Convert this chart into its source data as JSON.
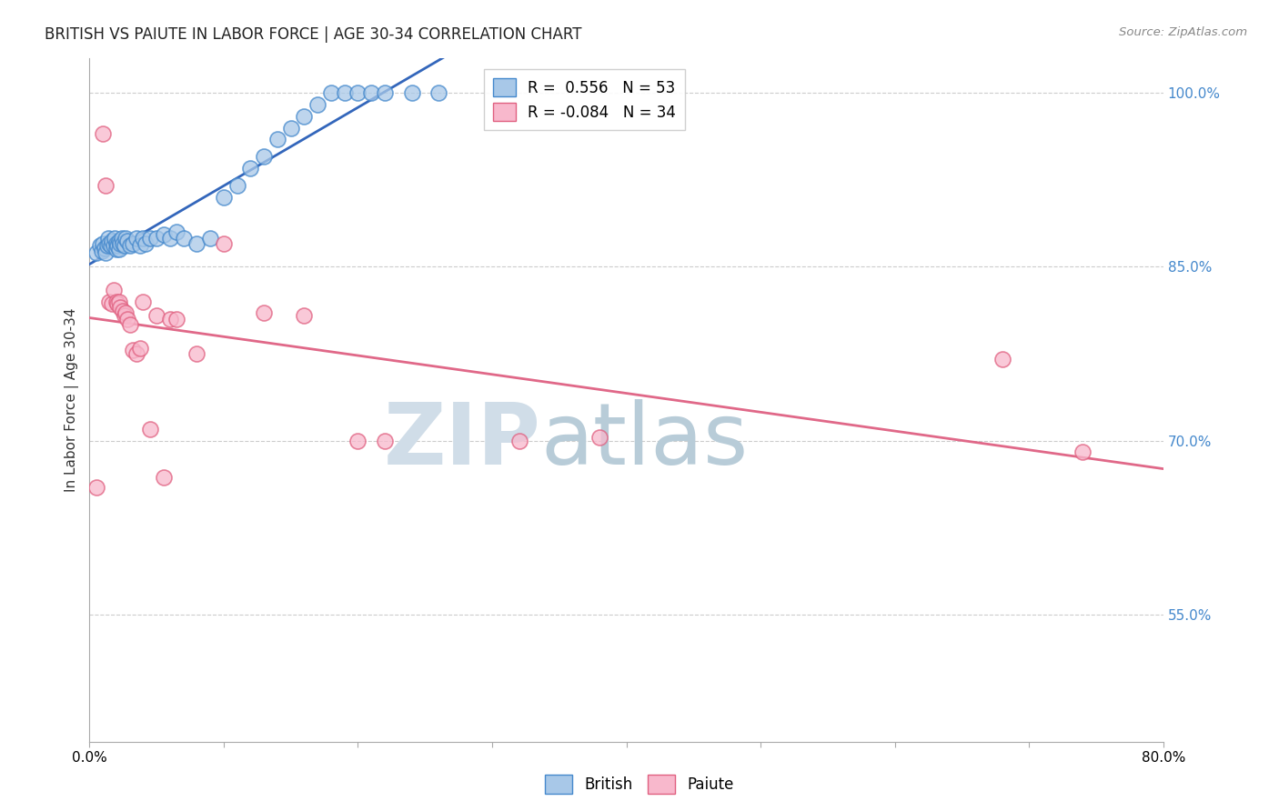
{
  "title": "BRITISH VS PAIUTE IN LABOR FORCE | AGE 30-34 CORRELATION CHART",
  "source_text": "Source: ZipAtlas.com",
  "ylabel": "In Labor Force | Age 30-34",
  "xlim": [
    0.0,
    0.8
  ],
  "ylim": [
    0.44,
    1.03
  ],
  "xticks": [
    0.0,
    0.1,
    0.2,
    0.3,
    0.4,
    0.5,
    0.6,
    0.7,
    0.8
  ],
  "yticks_right": [
    0.55,
    0.7,
    0.85,
    1.0
  ],
  "ytick_labels_right": [
    "55.0%",
    "70.0%",
    "85.0%",
    "100.0%"
  ],
  "legend_british": "British",
  "legend_paiute": "Paiute",
  "r_british": 0.556,
  "n_british": 53,
  "r_paiute": -0.084,
  "n_paiute": 34,
  "blue_color": "#a8c8e8",
  "blue_edge_color": "#4488cc",
  "blue_line_color": "#3366bb",
  "pink_color": "#f8b8cc",
  "pink_edge_color": "#e06080",
  "pink_line_color": "#e06888",
  "watermark_color": "#d0dde8",
  "grid_color": "#cccccc",
  "bg_color": "#ffffff",
  "british_x": [
    0.005,
    0.008,
    0.009,
    0.01,
    0.011,
    0.012,
    0.013,
    0.014,
    0.015,
    0.016,
    0.017,
    0.018,
    0.019,
    0.02,
    0.02,
    0.021,
    0.022,
    0.022,
    0.023,
    0.024,
    0.025,
    0.026,
    0.027,
    0.028,
    0.03,
    0.032,
    0.035,
    0.038,
    0.04,
    0.042,
    0.045,
    0.05,
    0.055,
    0.06,
    0.065,
    0.07,
    0.08,
    0.09,
    0.1,
    0.11,
    0.12,
    0.13,
    0.14,
    0.15,
    0.16,
    0.17,
    0.18,
    0.19,
    0.2,
    0.21,
    0.22,
    0.24,
    0.26
  ],
  "british_y": [
    0.862,
    0.868,
    0.864,
    0.87,
    0.866,
    0.862,
    0.868,
    0.875,
    0.87,
    0.868,
    0.872,
    0.868,
    0.875,
    0.87,
    0.865,
    0.868,
    0.872,
    0.865,
    0.87,
    0.875,
    0.87,
    0.868,
    0.875,
    0.872,
    0.868,
    0.87,
    0.875,
    0.868,
    0.875,
    0.87,
    0.875,
    0.875,
    0.878,
    0.875,
    0.88,
    0.875,
    0.87,
    0.875,
    0.91,
    0.92,
    0.935,
    0.945,
    0.96,
    0.97,
    0.98,
    0.99,
    1.0,
    1.0,
    1.0,
    1.0,
    1.0,
    1.0,
    1.0
  ],
  "paiute_x": [
    0.005,
    0.01,
    0.012,
    0.015,
    0.017,
    0.018,
    0.02,
    0.021,
    0.022,
    0.023,
    0.025,
    0.026,
    0.027,
    0.028,
    0.03,
    0.032,
    0.035,
    0.038,
    0.04,
    0.045,
    0.05,
    0.055,
    0.06,
    0.065,
    0.08,
    0.1,
    0.13,
    0.16,
    0.2,
    0.22,
    0.32,
    0.38,
    0.68,
    0.74
  ],
  "paiute_y": [
    0.66,
    0.965,
    0.92,
    0.82,
    0.818,
    0.83,
    0.82,
    0.818,
    0.82,
    0.815,
    0.812,
    0.808,
    0.81,
    0.805,
    0.8,
    0.778,
    0.775,
    0.78,
    0.82,
    0.71,
    0.808,
    0.668,
    0.805,
    0.805,
    0.775,
    0.87,
    0.81,
    0.808,
    0.7,
    0.7,
    0.7,
    0.703,
    0.77,
    0.69
  ]
}
